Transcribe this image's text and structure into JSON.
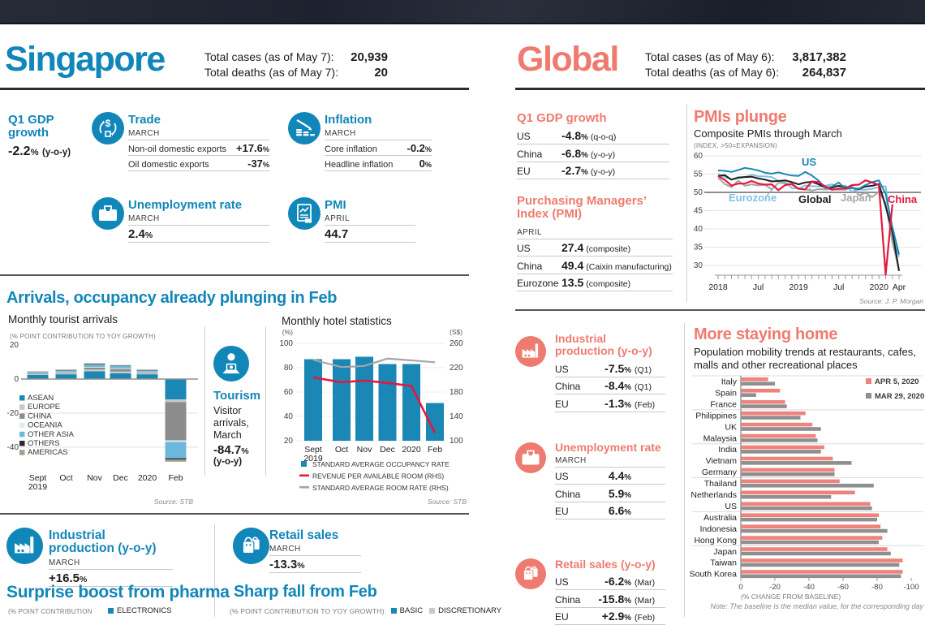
{
  "singapore": {
    "title": "Singapore",
    "accent": "#1186b9",
    "totals": [
      {
        "label": "Total cases (as of May 7):",
        "value": "20,939"
      },
      {
        "label": "Total deaths (as of May 7):",
        "value": "20"
      }
    ],
    "gdp": {
      "title": "Q1 GDP growth",
      "value": "-2.2",
      "unit": "%",
      "suffix": "(y-o-y)"
    },
    "trade": {
      "title": "Trade",
      "period": "MARCH",
      "icon": "currency-exchange",
      "rows": [
        {
          "label": "Non-oil domestic exports",
          "value": "+17.6",
          "unit": "%"
        },
        {
          "label": "Oil domestic exports",
          "value": "-37",
          "unit": "%"
        }
      ]
    },
    "inflation": {
      "title": "Inflation",
      "period": "MARCH",
      "icon": "falling-coins",
      "rows": [
        {
          "label": "Core inflation",
          "value": "-0.2",
          "unit": "%"
        },
        {
          "label": "Headline inflation",
          "value": "0",
          "unit": "%"
        }
      ]
    },
    "unemployment": {
      "title": "Unemployment rate",
      "period": "MARCH",
      "icon": "briefcase",
      "value": "2.4",
      "unit": "%"
    },
    "pmi": {
      "title": "PMI",
      "period": "APRIL",
      "icon": "document-chart",
      "value": "44.7",
      "unit": ""
    },
    "arrivals_heading": "Arrivals, occupancy already plunging in Feb",
    "tourism": {
      "title": "Tourism",
      "icon": "tourist-camera",
      "desc1": "Visitor",
      "desc2": "arrivals,",
      "desc3": "March",
      "value": "-84.7",
      "unit": "%",
      "suffix": "(y-o-y)"
    },
    "industrial": {
      "title": "Industrial production (y-o-y)",
      "period": "MARCH",
      "icon": "factory",
      "value": "+16.5",
      "unit": "%"
    },
    "retail": {
      "title": "Retail sales",
      "period": "MARCH",
      "icon": "shopping-bag",
      "value": "-13.3",
      "unit": "%"
    },
    "pharma": {
      "heading": "Surprise boost from pharma",
      "note": "(% POINT CONTRIBUTION",
      "legend": [
        {
          "label": "ELECTRONICS",
          "color": "#1b87b5"
        }
      ]
    },
    "sharp": {
      "heading": "Sharp fall from Feb",
      "note": "(% POINT CONTRIBUTION TO YOY GROWTH)",
      "legend": [
        {
          "label": "BASIC",
          "color": "#1b87b5"
        },
        {
          "label": "DISCRETIONARY",
          "color": "#c9c9c9"
        }
      ]
    }
  },
  "global": {
    "title": "Global",
    "accent": "#ef7b70",
    "totals": [
      {
        "label": "Total cases (as of May 6):",
        "value": "3,817,382"
      },
      {
        "label": "Total deaths (as of May 6):",
        "value": "264,837"
      }
    ],
    "gdp": {
      "title": "Q1 GDP growth",
      "rows": [
        {
          "label": "US",
          "value": "-4.8",
          "unit": "%",
          "suffix": "(q-o-q)"
        },
        {
          "label": "China",
          "value": "-6.8",
          "unit": "%",
          "suffix": "(y-o-y)"
        },
        {
          "label": "EU",
          "value": "-2.7",
          "unit": "%",
          "suffix": "(y-o-y)"
        }
      ]
    },
    "pmi": {
      "title": "Purchasing Managers’ Index (PMI)",
      "period": "APRIL",
      "rows": [
        {
          "label": "US",
          "value": "27.4",
          "suffix": "(composite)"
        },
        {
          "label": "China",
          "value": "49.4",
          "suffix": "(Caixin manufacturing)"
        },
        {
          "label": "Eurozone",
          "value": "13.5",
          "suffix": "(composite)"
        }
      ]
    },
    "industrial": {
      "title": "Industrial production (y-o-y)",
      "icon": "factory",
      "rows": [
        {
          "label": "US",
          "value": "-7.5",
          "unit": "%",
          "suffix": "(Q1)"
        },
        {
          "label": "China",
          "value": "-8.4",
          "unit": "%",
          "suffix": "(Q1)"
        },
        {
          "label": "EU",
          "value": "-1.3",
          "unit": "%",
          "suffix": "(Feb)"
        }
      ]
    },
    "unemployment": {
      "title": "Unemployment rate",
      "period": "MARCH",
      "icon": "briefcase",
      "rows": [
        {
          "label": "US",
          "value": "4.4",
          "unit": "%",
          "suffix": ""
        },
        {
          "label": "China",
          "value": "5.9",
          "unit": "%",
          "suffix": ""
        },
        {
          "label": "EU",
          "value": "6.6",
          "unit": "%",
          "suffix": ""
        }
      ]
    },
    "retail": {
      "title": "Retail sales (y-o-y)",
      "icon": "shopping-bag",
      "rows": [
        {
          "label": "US",
          "value": "-6.2",
          "unit": "%",
          "suffix": "(Mar)"
        },
        {
          "label": "China",
          "value": "-15.8",
          "unit": "%",
          "suffix": "(Mar)"
        },
        {
          "label": "EU",
          "value": "+2.9",
          "unit": "%",
          "suffix": "(Feb)"
        }
      ]
    }
  },
  "chart_data": [
    {
      "id": "tourist_arrivals",
      "type": "bar",
      "stacked": true,
      "title": "Monthly tourist arrivals",
      "note": "(% POINT CONTRIBUTION TO YOY GROWTH)",
      "categories": [
        [
          "Sept",
          "2019"
        ],
        [
          "Oct"
        ],
        [
          "Nov"
        ],
        [
          "Dec"
        ],
        [
          "2020"
        ],
        [
          "Feb"
        ]
      ],
      "series": [
        {
          "name": "ASEAN",
          "color": "#1b87b5",
          "values": [
            2.4,
            2.8,
            4.6,
            3.4,
            2.8,
            -12.0
          ]
        },
        {
          "name": "EUROPE",
          "color": "#c9c9c9",
          "values": [
            0.5,
            0.6,
            1.0,
            1.0,
            0.6,
            -1.5
          ]
        },
        {
          "name": "CHINA",
          "color": "#8c8c8c",
          "values": [
            0.4,
            0.5,
            1.1,
            1.5,
            0.5,
            -22.5
          ]
        },
        {
          "name": "OCEANIA",
          "color": "#dcedf4",
          "values": [
            0.2,
            0.3,
            0.4,
            0.4,
            0.3,
            -0.9
          ]
        },
        {
          "name": "OTHER ASIA",
          "color": "#6cb8da",
          "values": [
            0.7,
            0.9,
            1.4,
            1.3,
            0.9,
            -9.6
          ]
        },
        {
          "name": "OTHERS",
          "color": "#2b2b2b",
          "values": [
            0.1,
            0.2,
            0.3,
            0.2,
            0.2,
            -0.7
          ]
        },
        {
          "name": "AMERICAS",
          "color": "#a09f90",
          "values": [
            0.2,
            0.3,
            0.4,
            0.4,
            0.3,
            -1.3
          ]
        }
      ],
      "ylim": [
        -52,
        22
      ],
      "yticks": [
        20,
        0,
        -20,
        -40
      ],
      "grid": true,
      "legend_position": "inside-left",
      "source": "Source: STB"
    },
    {
      "id": "hotel_statistics",
      "type": "bar+line",
      "title": "Monthly hotel statistics",
      "categories": [
        [
          "Sept",
          "2019"
        ],
        [
          "Oct"
        ],
        [
          "Nov"
        ],
        [
          "Dec"
        ],
        [
          "2020"
        ],
        [
          "Feb"
        ]
      ],
      "left_axis": {
        "label": "(%)",
        "ticks": [
          100,
          80,
          60,
          40,
          20
        ],
        "range": [
          20,
          100
        ]
      },
      "right_axis": {
        "label": "(S$)",
        "ticks": [
          260,
          220,
          180,
          140,
          100
        ],
        "range": [
          100,
          260
        ]
      },
      "series": [
        {
          "name": "STANDARD AVERAGE OCCUPANCY RATE",
          "type": "bar",
          "axis": "left",
          "color": "#1b87b5",
          "values": [
            87,
            87,
            89,
            83,
            83,
            51
          ]
        },
        {
          "name": "REVENUE PER AVAILABLE ROOM (RHS)",
          "type": "line",
          "axis": "right",
          "color": "#e5173f",
          "values": [
            204,
            196,
            199,
            195,
            190,
            113
          ]
        },
        {
          "name": "STANDARD AVERAGE ROOM RATE (RHS)",
          "type": "line",
          "axis": "right",
          "color": "#a5a5a5",
          "values": [
            233,
            221,
            223,
            235,
            232,
            229
          ]
        }
      ],
      "legend_position": "below",
      "source": "Source: STB"
    },
    {
      "id": "pmis_plunge",
      "type": "line",
      "title": "PMIs plunge",
      "subtitle": "Composite PMIs through March",
      "note": "(INDEX, >50=EXPANSION)",
      "x_labels": [
        "2018",
        "Jul",
        "2019",
        "Jul",
        "2020",
        "Apr"
      ],
      "x_label_month_index": [
        0,
        6,
        12,
        18,
        24,
        27
      ],
      "months_span": "Jan 2018 - Apr 2020",
      "ylim": [
        28,
        60
      ],
      "yticks": [
        60,
        55,
        50,
        45,
        40,
        35,
        30
      ],
      "reference_line": 50,
      "series": [
        {
          "name": "US",
          "color": "#1b87b5",
          "values": [
            56.0,
            55.9,
            55.6,
            56.1,
            56.7,
            56.4,
            56.0,
            55.4,
            55.1,
            55.5,
            55.0,
            54.6,
            54.5,
            55.6,
            54.6,
            53.2,
            51.2,
            51.6,
            52.7,
            51.0,
            51.2,
            51.0,
            52.0,
            52.8,
            53.3,
            49.6,
            40.5,
            33.0
          ]
        },
        {
          "name": "Eurozone",
          "color": "#7fc2e0",
          "values": [
            55.0,
            54.2,
            53.5,
            54.2,
            54.2,
            54.8,
            54.4,
            54.4,
            54.2,
            53.2,
            52.8,
            51.2,
            51.0,
            51.9,
            51.7,
            51.6,
            51.8,
            52.2,
            51.6,
            51.9,
            50.2,
            50.7,
            50.7,
            51.0,
            51.4,
            51.7,
            38.0,
            32.3
          ]
        },
        {
          "name": "Global",
          "color": "#1d1d1b",
          "values": [
            54.5,
            54.7,
            53.5,
            54.0,
            54.2,
            54.3,
            53.8,
            53.5,
            53.0,
            53.1,
            53.3,
            52.8,
            52.2,
            52.7,
            52.9,
            52.2,
            51.3,
            51.3,
            51.8,
            51.4,
            51.2,
            50.9,
            51.6,
            51.8,
            52.3,
            46.2,
            39.3,
            28.5
          ]
        },
        {
          "name": "Japan",
          "color": "#a5a5a5",
          "values": [
            54.0,
            52.3,
            51.4,
            53.2,
            51.8,
            52.2,
            51.9,
            52.1,
            50.8,
            52.6,
            52.5,
            52.1,
            51.0,
            50.8,
            50.5,
            50.9,
            50.8,
            50.9,
            50.7,
            50.7,
            51.6,
            49.2,
            49.9,
            48.7,
            50.2,
            47.1,
            36.3,
            28.8
          ]
        },
        {
          "name": "China",
          "color": "#e5173f",
          "values": [
            54.5,
            53.4,
            51.9,
            52.4,
            52.4,
            53.1,
            52.4,
            52.1,
            52.2,
            50.6,
            52.0,
            52.3,
            51.0,
            50.8,
            53.0,
            52.8,
            51.6,
            50.7,
            51.0,
            51.1,
            52.0,
            52.1,
            53.3,
            52.7,
            52.0,
            27.5,
            46.7
          ]
        }
      ],
      "source": "Source: J. P. Morgan"
    },
    {
      "id": "mobility",
      "type": "bar",
      "orientation": "horizontal",
      "title": "More staying home",
      "subtitle": "Population mobility trends at restaurants, cafes, malls and other recreational places",
      "categories": [
        "Italy",
        "Spain",
        "France",
        "Philippines",
        "UK",
        "Malaysia",
        "India",
        "Vietnam",
        "Germany",
        "Thailand",
        "Netherlands",
        "US",
        "Australia",
        "Indonesia",
        "Hong Kong",
        "Japan",
        "Taiwan",
        "South Korea"
      ],
      "series": [
        {
          "name": "APR 5, 2020",
          "color": "#ef837b",
          "values": [
            -16,
            -23,
            -26,
            -38,
            -42,
            -44,
            -49,
            -54,
            -55,
            -58,
            -67,
            -76,
            -81,
            -82,
            -83,
            -86,
            -95,
            -95
          ]
        },
        {
          "name": "MAR 29, 2020",
          "color": "#8f8f8f",
          "values": [
            -20,
            -9,
            -27,
            -35,
            -47,
            -45,
            -47,
            -65,
            -55,
            -78,
            -53,
            -77,
            -80,
            -86,
            -81,
            -88,
            -93,
            -94
          ]
        }
      ],
      "xticks": [
        0,
        -20,
        -40,
        -60,
        -80,
        -100
      ],
      "xlim": [
        0,
        -100
      ],
      "xlabel": "(% CHANGE FROM BASELINE)",
      "note": "Note: The baseline is the median value, for the corresponding day"
    }
  ],
  "icons": {
    "trade": "currency-exchange-icon",
    "inflation": "falling-coins-icon",
    "unemployment": "briefcase-icon",
    "pmi": "document-chart-icon",
    "tourism": "tourist-camera-icon",
    "industrial": "factory-icon",
    "retail": "shopping-bag-icon"
  }
}
